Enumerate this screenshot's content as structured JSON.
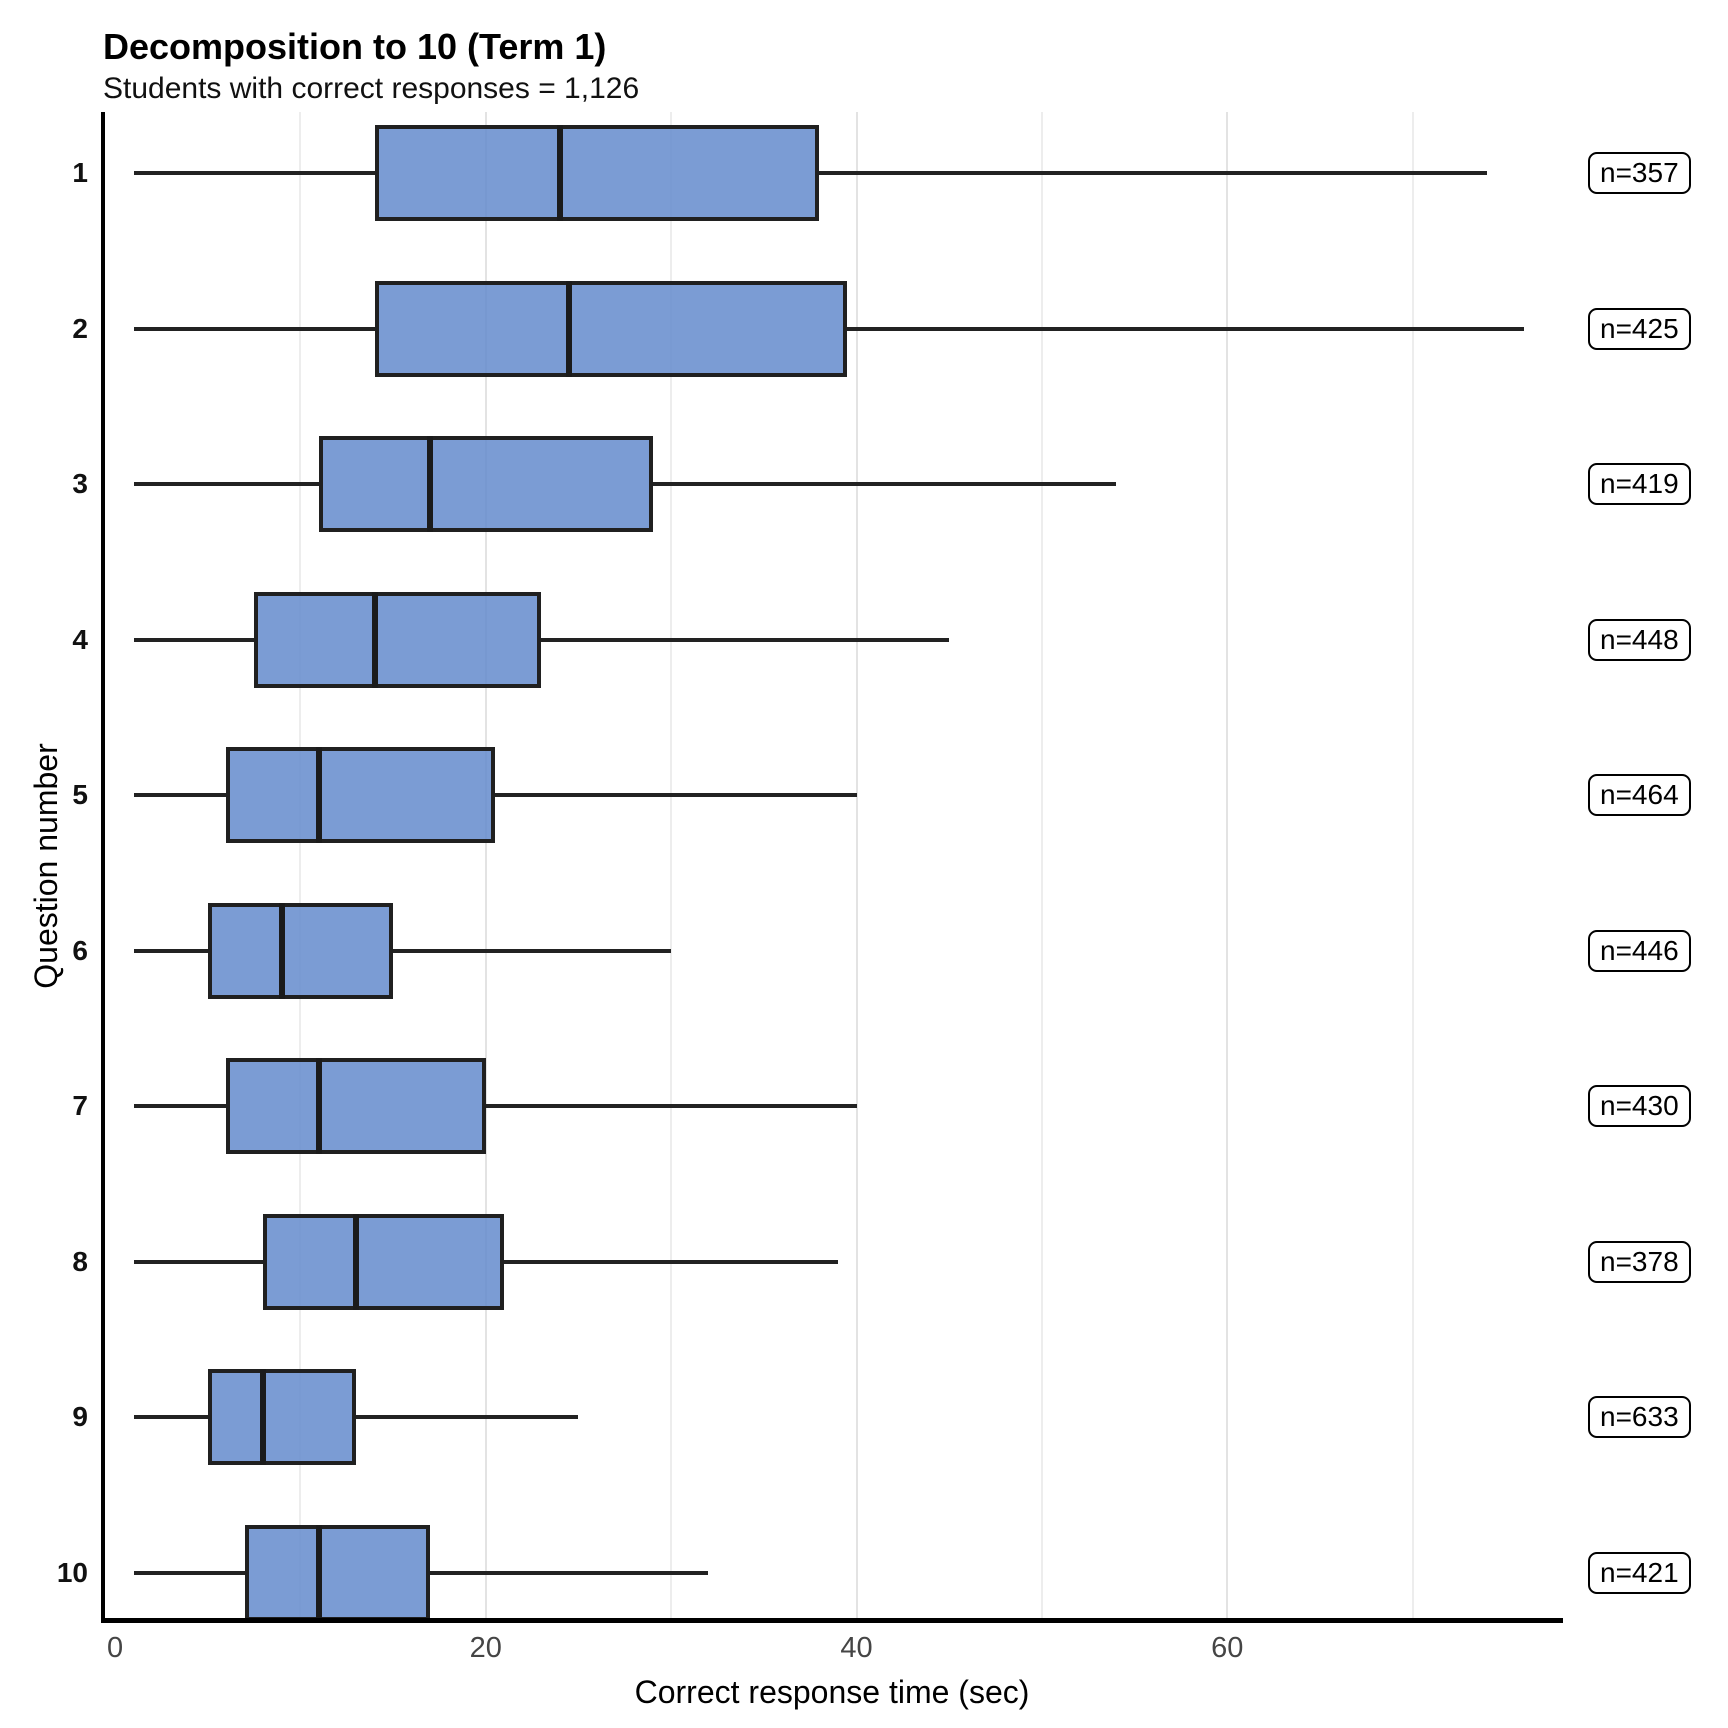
{
  "title": "Decomposition to 10 (Term 1)",
  "subtitle": "Students with correct responses = 1,126",
  "chart_data": {
    "type": "boxplot",
    "orientation": "horizontal",
    "title": "Decomposition to 10 (Term 1)",
    "subtitle": "Students with correct responses = 1,126",
    "xlabel": "Correct response time (sec)",
    "ylabel": "Question number",
    "xlim": [
      -0.65,
      78
    ],
    "x_ticks": [
      0,
      20,
      40,
      60
    ],
    "x_minor_gridlines": [
      10,
      30,
      50,
      70
    ],
    "x_major_gridlines": [
      20,
      40,
      60
    ],
    "grid": "vertical-only",
    "legend": "none",
    "categories": [
      "1",
      "2",
      "3",
      "4",
      "5",
      "6",
      "7",
      "8",
      "9",
      "10"
    ],
    "series": [
      {
        "question": "1",
        "min": 1,
        "q1": 14,
        "median": 24,
        "q3": 38,
        "max": 74,
        "n_label": "n=357"
      },
      {
        "question": "2",
        "min": 1,
        "q1": 14,
        "median": 24.5,
        "q3": 39.5,
        "max": 76,
        "n_label": "n=425"
      },
      {
        "question": "3",
        "min": 1,
        "q1": 11,
        "median": 17,
        "q3": 29,
        "max": 54,
        "n_label": "n=419"
      },
      {
        "question": "4",
        "min": 1,
        "q1": 7.5,
        "median": 14,
        "q3": 23,
        "max": 45,
        "n_label": "n=448"
      },
      {
        "question": "5",
        "min": 1,
        "q1": 6,
        "median": 11,
        "q3": 20.5,
        "max": 40,
        "n_label": "n=464"
      },
      {
        "question": "6",
        "min": 1,
        "q1": 5,
        "median": 9,
        "q3": 15,
        "max": 30,
        "n_label": "n=446"
      },
      {
        "question": "7",
        "min": 1,
        "q1": 6,
        "median": 11,
        "q3": 20,
        "max": 40,
        "n_label": "n=430"
      },
      {
        "question": "8",
        "min": 1,
        "q1": 8,
        "median": 13,
        "q3": 21,
        "max": 39,
        "n_label": "n=378"
      },
      {
        "question": "9",
        "min": 1,
        "q1": 5,
        "median": 8,
        "q3": 13,
        "max": 25,
        "n_label": "n=633"
      },
      {
        "question": "10",
        "min": 1,
        "q1": 7,
        "median": 11,
        "q3": 17,
        "max": 32,
        "n_label": "n=421"
      }
    ]
  },
  "colors": {
    "box_fill": "#648bcd",
    "box_border": "#202020",
    "median": "#1b1b1b",
    "whisker": "#222222",
    "gridline_minor": "#ededed",
    "gridline_major": "#e3e3e3",
    "axis": "#000000",
    "tick_label": "#454545",
    "n_label_border": "#000000",
    "background": "#ffffff"
  }
}
